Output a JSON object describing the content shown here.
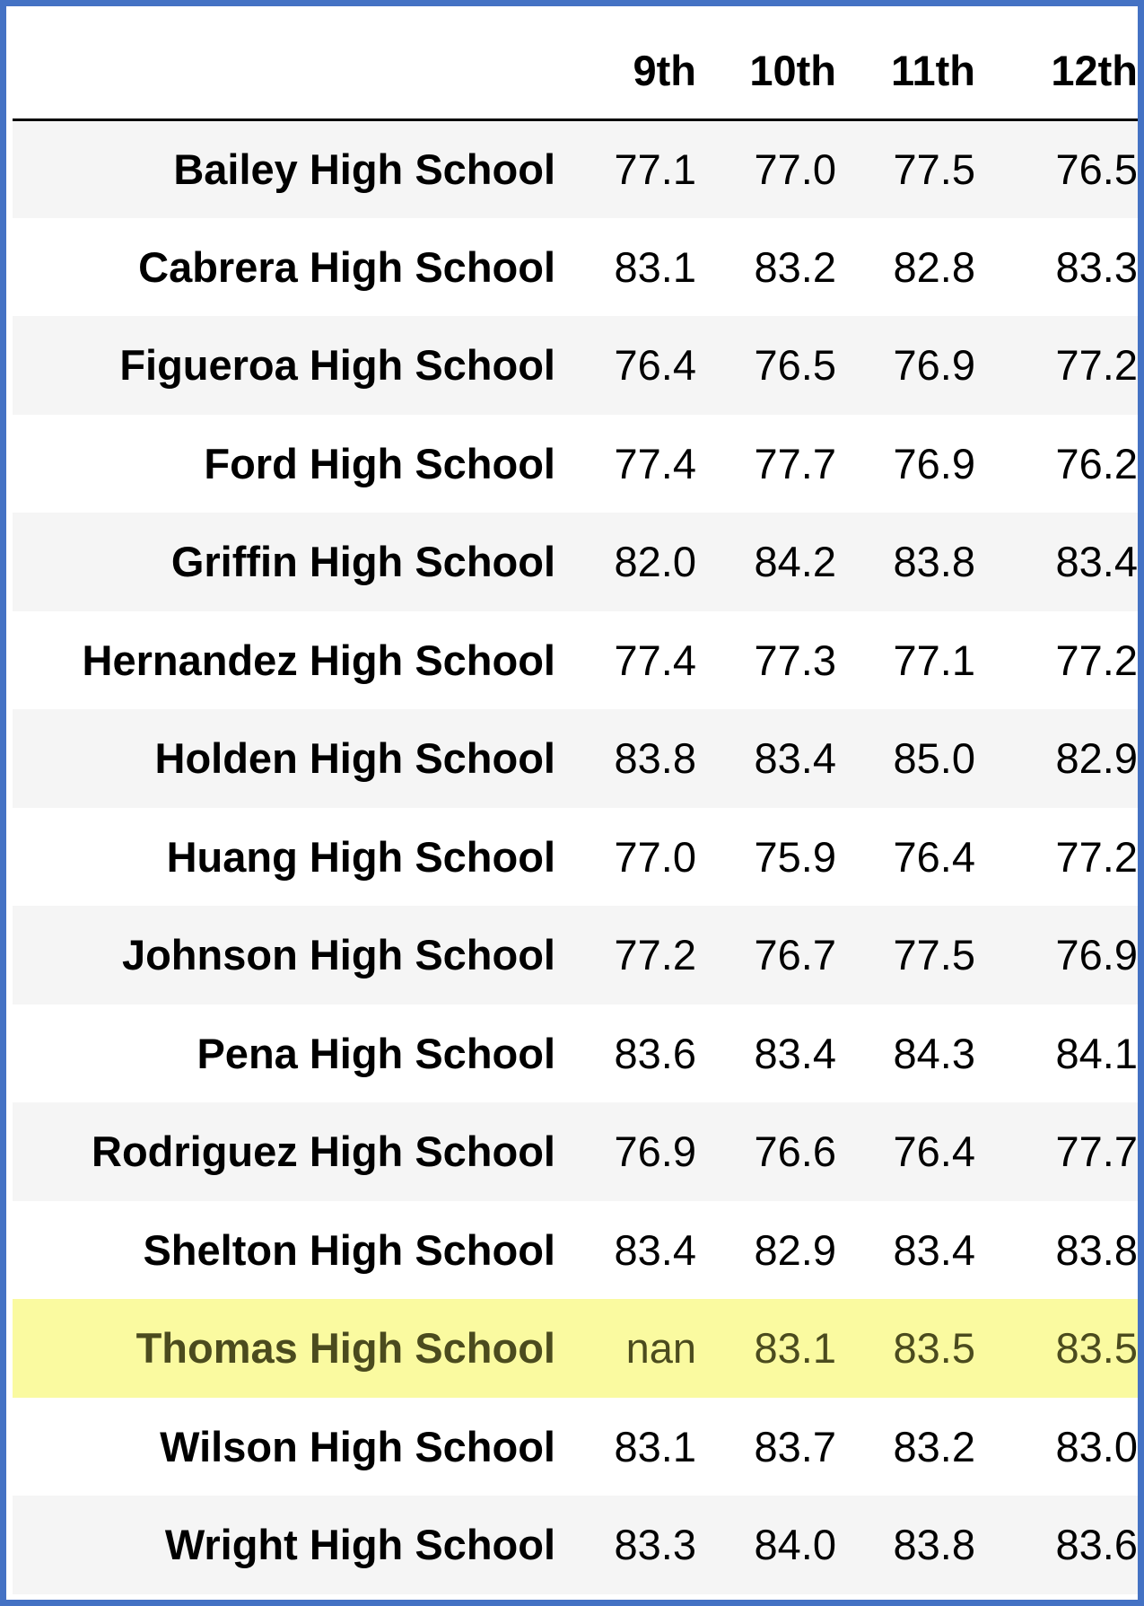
{
  "table": {
    "columns": [
      "9th",
      "10th",
      "11th",
      "12th"
    ],
    "rows": [
      {
        "school": "Bailey High School",
        "values": [
          "77.1",
          "77.0",
          "77.5",
          "76.5"
        ]
      },
      {
        "school": "Cabrera High School",
        "values": [
          "83.1",
          "83.2",
          "82.8",
          "83.3"
        ]
      },
      {
        "school": "Figueroa High School",
        "values": [
          "76.4",
          "76.5",
          "76.9",
          "77.2"
        ]
      },
      {
        "school": "Ford High School",
        "values": [
          "77.4",
          "77.7",
          "76.9",
          "76.2"
        ]
      },
      {
        "school": "Griffin High School",
        "values": [
          "82.0",
          "84.2",
          "83.8",
          "83.4"
        ]
      },
      {
        "school": "Hernandez High School",
        "values": [
          "77.4",
          "77.3",
          "77.1",
          "77.2"
        ]
      },
      {
        "school": "Holden High School",
        "values": [
          "83.8",
          "83.4",
          "85.0",
          "82.9"
        ]
      },
      {
        "school": "Huang High School",
        "values": [
          "77.0",
          "75.9",
          "76.4",
          "77.2"
        ]
      },
      {
        "school": "Johnson High School",
        "values": [
          "77.2",
          "76.7",
          "77.5",
          "76.9"
        ]
      },
      {
        "school": "Pena High School",
        "values": [
          "83.6",
          "83.4",
          "84.3",
          "84.1"
        ]
      },
      {
        "school": "Rodriguez High School",
        "values": [
          "76.9",
          "76.6",
          "76.4",
          "77.7"
        ]
      },
      {
        "school": "Shelton High School",
        "values": [
          "83.4",
          "82.9",
          "83.4",
          "83.8"
        ]
      },
      {
        "school": "Thomas High School",
        "values": [
          "nan",
          "83.1",
          "83.5",
          "83.5"
        ]
      },
      {
        "school": "Wilson High School",
        "values": [
          "83.1",
          "83.7",
          "83.2",
          "83.0"
        ]
      },
      {
        "school": "Wright High School",
        "values": [
          "83.3",
          "84.0",
          "83.8",
          "83.6"
        ]
      }
    ],
    "highlighted_row": "Thomas High School",
    "colors": {
      "frame_border": "#4472c4",
      "stripe": "#f5f5f5",
      "highlight": "#fafaa0"
    }
  }
}
